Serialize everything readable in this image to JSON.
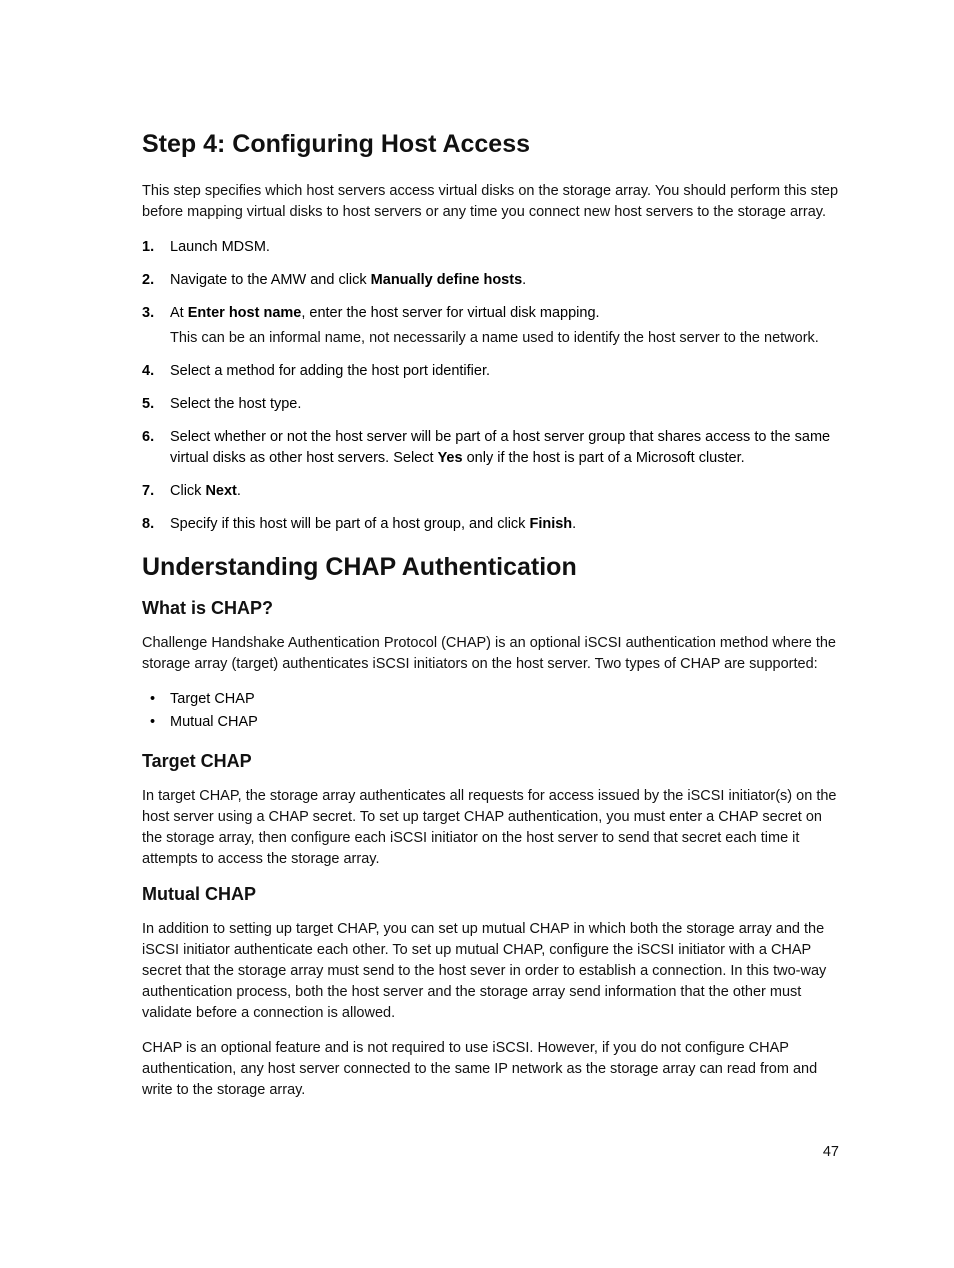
{
  "section1": {
    "title": "Step 4: Configuring Host Access",
    "intro": "This step specifies which host servers access virtual disks on the storage array. You should perform this step before mapping virtual disks to host servers or any time you connect new host servers to the storage array.",
    "steps": {
      "s1": "Launch MDSM.",
      "s2a": "Navigate to the AMW and click ",
      "s2b": "Manually define hosts",
      "s2c": ".",
      "s3a": "At ",
      "s3b": "Enter host name",
      "s3c": ", enter the host server for virtual disk mapping.",
      "s3p": "This can be an informal name, not necessarily a name used to identify the host server to the network.",
      "s4": "Select a method for adding the host port identifier.",
      "s5": "Select the host type.",
      "s6a": "Select whether or not the host server will be part of a host server group that shares access to the same virtual disks as other host servers. Select ",
      "s6b": "Yes",
      "s6c": " only if the host is part of a Microsoft cluster.",
      "s7a": "Click ",
      "s7b": "Next",
      "s7c": ".",
      "s8a": "Specify if this host will be part of a host group, and click ",
      "s8b": "Finish",
      "s8c": "."
    }
  },
  "section2": {
    "title": "Understanding CHAP Authentication",
    "what": {
      "heading": "What is CHAP?",
      "intro": "Challenge Handshake Authentication Protocol (CHAP) is an optional iSCSI authentication method where the storage array (target) authenticates iSCSI initiators on the host server. Two types of CHAP are supported:",
      "bullets": {
        "b1": "Target CHAP",
        "b2": "Mutual CHAP"
      }
    },
    "target": {
      "heading": "Target CHAP",
      "body": "In target CHAP, the storage array authenticates all requests for access issued by the iSCSI initiator(s) on the host server using a CHAP secret. To set up target CHAP authentication, you must enter a CHAP secret on the storage array, then configure each iSCSI initiator on the host server to send that secret each time it attempts to access the storage array."
    },
    "mutual": {
      "heading": "Mutual CHAP",
      "p1": "In addition to setting up target CHAP, you can set up mutual CHAP in which both the storage array and the iSCSI initiator authenticate each other. To set up mutual CHAP, configure the iSCSI initiator with a CHAP secret that the storage array must send to the host sever in order to establish a connection. In this two-way authentication process, both the host server and the storage array send information that the other must validate before a connection is allowed.",
      "p2": "CHAP is an optional feature and is not required to use iSCSI. However, if you do not configure CHAP authentication, any host server connected to the same IP network as the storage array can read from and write to the storage array."
    }
  },
  "page_number": "47"
}
